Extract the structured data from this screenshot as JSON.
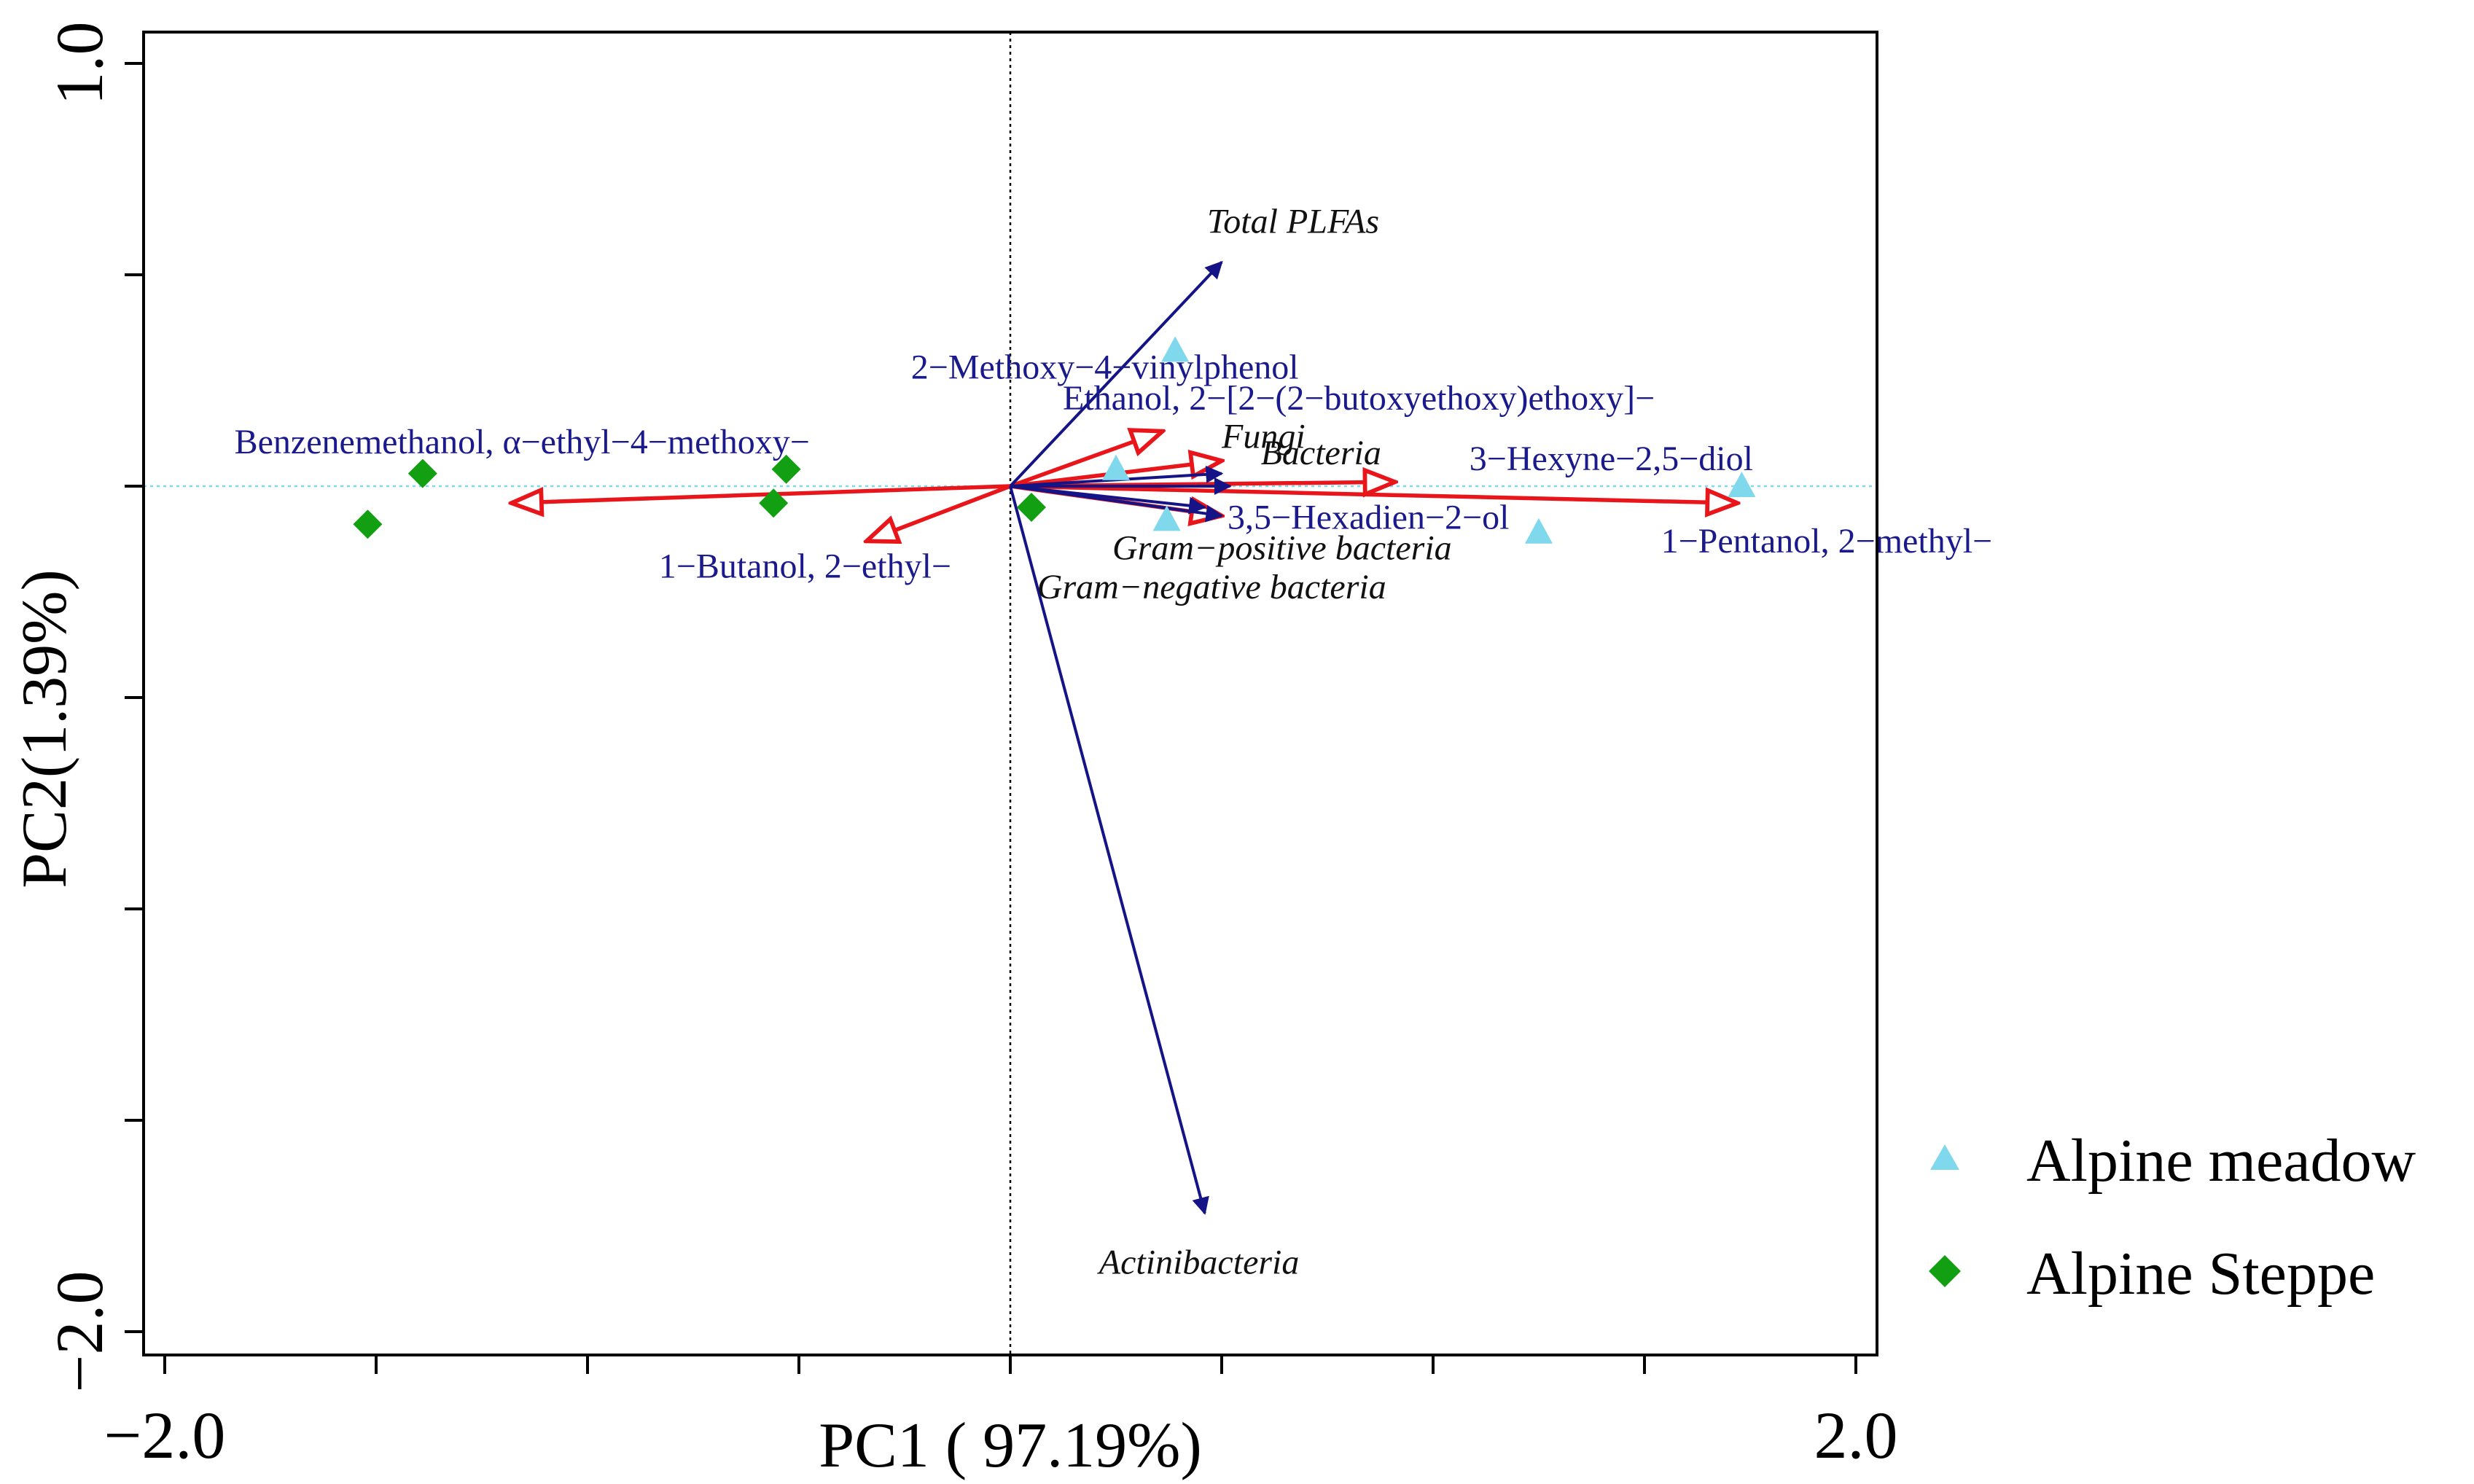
{
  "chart_data": {
    "type": "scatter",
    "subtype": "PCA biplot",
    "xlabel": "PC1 ( 97.19%)",
    "ylabel": "PC2(1.39%)",
    "xlim": [
      -2.05,
      2.05
    ],
    "ylim": [
      -2.1,
      1.05
    ],
    "x_tick_values": [
      -2.0,
      -1.5,
      -1.0,
      -0.5,
      0.0,
      0.5,
      1.0,
      1.5,
      2.0
    ],
    "x_tick_labels": [
      "-2.0",
      "",
      "",
      "",
      "",
      "",
      "",
      "",
      "2.0"
    ],
    "y_tick_values": [
      1.0,
      0.5,
      0.0,
      -0.5,
      -1.0,
      -1.5,
      -2.0
    ],
    "y_tick_labels": [
      "1.0",
      "",
      "",
      "",
      "",
      "",
      "-2.0"
    ],
    "reference_lines": {
      "x": 0.0,
      "y": 0.0
    },
    "colors": {
      "alpine_meadow": "#7fd8ec",
      "alpine_steppe": "#12a012",
      "microbe_vector": "#141487",
      "voc_vector": "#e8161a"
    },
    "series": [
      {
        "name": "Alpine meadow",
        "marker": "triangle",
        "points": [
          [
            0.39,
            0.32
          ],
          [
            0.25,
            0.04
          ],
          [
            0.37,
            -0.08
          ],
          [
            1.25,
            -0.11
          ],
          [
            1.73,
            0.0
          ]
        ]
      },
      {
        "name": "Alpine Steppe",
        "marker": "diamond",
        "points": [
          [
            -1.39,
            0.03
          ],
          [
            -1.52,
            -0.09
          ],
          [
            -0.53,
            0.04
          ],
          [
            -0.56,
            -0.04
          ],
          [
            0.05,
            -0.05
          ]
        ]
      }
    ],
    "microbe_vectors": [
      {
        "name": "Total PLFAs",
        "x": 0.5,
        "y": 0.53
      },
      {
        "name": "Fungi",
        "x": 0.5,
        "y": 0.03
      },
      {
        "name": "Bacteria",
        "x": 0.52,
        "y": 0.0
      },
      {
        "name": "Gram-positive bacteria",
        "x": 0.5,
        "y": -0.07
      },
      {
        "name": "Gram-negative bacteria",
        "x": 0.46,
        "y": -0.05
      },
      {
        "name": "Actinibacteria",
        "x": 0.46,
        "y": -1.72
      }
    ],
    "voc_vectors": [
      {
        "name": "2-Methoxy-4-vinylphenol",
        "x": 0.36,
        "y": 0.13
      },
      {
        "name": "Ethanol, 2-[2-(2-butoxyethoxy)ethoxy]-",
        "x": 0.5,
        "y": 0.06
      },
      {
        "name": "Benzenemethanol, α-ethyl-4-methoxy-",
        "x": -1.18,
        "y": -0.04
      },
      {
        "name": "1-Butanol, 2-ethyl-",
        "x": -0.34,
        "y": -0.13
      },
      {
        "name": "3-Hexyne-2,5-diol",
        "x": 0.91,
        "y": 0.01
      },
      {
        "name": "3,5-Hexadien-2-ol",
        "x": 0.5,
        "y": -0.07
      },
      {
        "name": "1-Pentanol, 2-methyl-",
        "x": 1.72,
        "y": -0.04
      }
    ],
    "legend": {
      "position": "right-bottom",
      "entries": [
        "Alpine meadow",
        "Alpine Steppe"
      ]
    }
  }
}
